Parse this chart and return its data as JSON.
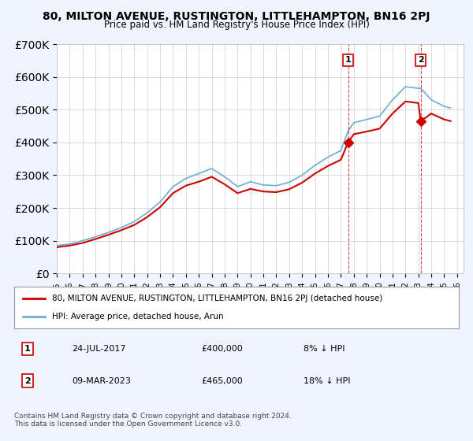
{
  "title": "80, MILTON AVENUE, RUSTINGTON, LITTLEHAMPTON, BN16 2PJ",
  "subtitle": "Price paid vs. HM Land Registry's House Price Index (HPI)",
  "hpi_label": "HPI: Average price, detached house, Arun",
  "price_label": "80, MILTON AVENUE, RUSTINGTON, LITTLEHAMPTON, BN16 2PJ (detached house)",
  "hpi_color": "#6baed6",
  "price_color": "#cc0000",
  "background_color": "#f0f4ff",
  "plot_bg_color": "#ffffff",
  "transactions": [
    {
      "id": 1,
      "date": "24-JUL-2017",
      "price": 400000,
      "hpi_diff": "8% ↓ HPI",
      "year": 2017.56
    },
    {
      "id": 2,
      "date": "09-MAR-2023",
      "price": 465000,
      "hpi_diff": "18% ↓ HPI",
      "year": 2023.19
    }
  ],
  "ylim": [
    0,
    700000
  ],
  "yticks": [
    0,
    100000,
    200000,
    300000,
    400000,
    500000,
    600000,
    700000
  ],
  "xlim": [
    1995,
    2026.5
  ],
  "footer": "Contains HM Land Registry data © Crown copyright and database right 2024.\nThis data is licensed under the Open Government Licence v3.0.",
  "hpi_years": [
    1995,
    1996,
    1997,
    1998,
    1999,
    2000,
    2001,
    2002,
    2003,
    2004,
    2005,
    2006,
    2007,
    2008,
    2009,
    2010,
    2011,
    2012,
    2013,
    2014,
    2015,
    2016,
    2017,
    2017.56,
    2018,
    2019,
    2020,
    2021,
    2022,
    2023,
    2023.19,
    2024,
    2025,
    2025.5
  ],
  "hpi_values": [
    85000,
    90000,
    100000,
    112000,
    125000,
    140000,
    158000,
    185000,
    218000,
    265000,
    290000,
    305000,
    320000,
    295000,
    265000,
    280000,
    270000,
    268000,
    278000,
    300000,
    330000,
    355000,
    375000,
    435000,
    460000,
    470000,
    480000,
    530000,
    570000,
    565000,
    565000,
    530000,
    510000,
    505000
  ],
  "price_years": [
    1995,
    1996,
    1997,
    1998,
    1999,
    2000,
    2001,
    2002,
    2003,
    2004,
    2005,
    2006,
    2007,
    2008,
    2009,
    2010,
    2011,
    2012,
    2013,
    2014,
    2015,
    2016,
    2017,
    2017.56,
    2018,
    2019,
    2020,
    2021,
    2022,
    2023,
    2023.19,
    2024,
    2025,
    2025.5
  ],
  "price_values": [
    80000,
    85000,
    93000,
    105000,
    118000,
    132000,
    148000,
    172000,
    202000,
    245000,
    268000,
    280000,
    295000,
    272000,
    245000,
    258000,
    250000,
    248000,
    257000,
    277000,
    305000,
    328000,
    347000,
    400000,
    425000,
    433000,
    442000,
    488000,
    525000,
    520000,
    465000,
    488000,
    470000,
    465000
  ]
}
